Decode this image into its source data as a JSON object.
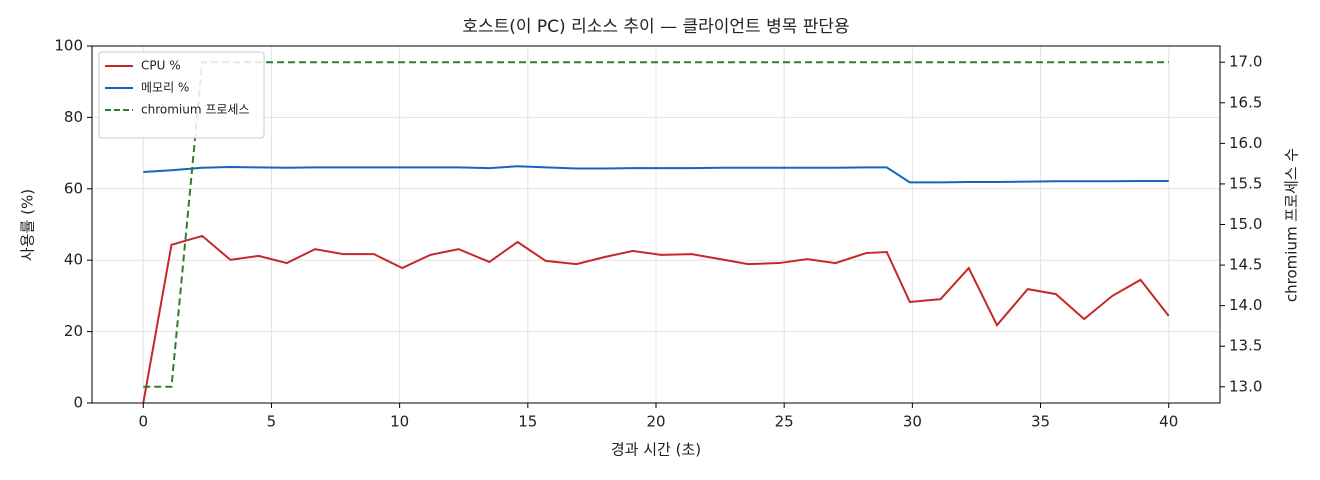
{
  "chart_data": {
    "type": "line",
    "title": "호스트(이 PC) 리소스 추이 — 클라이언트 병목 판단용",
    "xlabel": "경과 시간 (초)",
    "ylabel": "사용률 (%)",
    "y2label": "chromium 프로세스 수",
    "x": [
      0,
      1.1,
      2.3,
      3.4,
      4.5,
      5.6,
      6.7,
      7.8,
      9.0,
      10.1,
      11.2,
      12.3,
      13.5,
      14.6,
      15.7,
      16.9,
      18.0,
      19.1,
      20.2,
      21.4,
      22.5,
      23.6,
      24.8,
      25.9,
      27.0,
      28.2,
      29.0,
      29.9,
      31.1,
      32.2,
      33.3,
      34.5,
      35.6,
      36.7,
      37.8,
      38.9,
      40.0
    ],
    "series": [
      {
        "name": "CPU %",
        "color": "#c62828",
        "linestyle": "solid",
        "axis": "y",
        "values": [
          0,
          44.3,
          46.8,
          40.1,
          41.2,
          39.2,
          43.1,
          41.7,
          41.7,
          37.8,
          41.5,
          43.1,
          39.5,
          45.1,
          39.8,
          38.9,
          40.9,
          42.6,
          41.5,
          41.7,
          40.3,
          38.9,
          39.2,
          40.3,
          39.2,
          42.0,
          42.3,
          28.3,
          29.1,
          37.8,
          21.8,
          31.9,
          30.5,
          23.5,
          30.0,
          34.5,
          24.4
        ]
      },
      {
        "name": "메모리 %",
        "color": "#1565c0",
        "linestyle": "solid",
        "axis": "y",
        "values": [
          64.7,
          65.2,
          65.9,
          66.1,
          66.0,
          65.9,
          66.0,
          66.0,
          66.0,
          66.0,
          66.0,
          66.0,
          65.8,
          66.3,
          66.0,
          65.7,
          65.7,
          65.8,
          65.8,
          65.8,
          65.9,
          65.9,
          65.9,
          65.9,
          65.9,
          66.0,
          66.0,
          61.8,
          61.8,
          61.9,
          61.9,
          62.0,
          62.1,
          62.1,
          62.1,
          62.2,
          62.2
        ]
      },
      {
        "name": "chromium 프로세스",
        "color": "#2e7d32",
        "linestyle": "dashed",
        "axis": "y2",
        "values": [
          13,
          13,
          17,
          17,
          17,
          17,
          17,
          17,
          17,
          17,
          17,
          17,
          17,
          17,
          17,
          17,
          17,
          17,
          17,
          17,
          17,
          17,
          17,
          17,
          17,
          17,
          17,
          17,
          17,
          17,
          17,
          17,
          17,
          17,
          17,
          17,
          17
        ]
      }
    ],
    "xlim": [
      -2,
      42
    ],
    "xticks": [
      0,
      5,
      10,
      15,
      20,
      25,
      30,
      35,
      40
    ],
    "ylim": [
      0,
      100
    ],
    "yticks": [
      0,
      20,
      40,
      60,
      80,
      100
    ],
    "y2lim": [
      12.8,
      17.2
    ],
    "y2ticks": [
      {
        "value": 13,
        "label": "13.0"
      },
      13.5,
      {
        "value": 14,
        "label": "14.0"
      },
      14.5,
      {
        "value": 15,
        "label": "15.0"
      },
      15.5,
      {
        "value": 16,
        "label": "16.0"
      },
      16.5,
      {
        "value": 17,
        "label": "17.0"
      }
    ],
    "grid": true,
    "legend": "upper left"
  }
}
